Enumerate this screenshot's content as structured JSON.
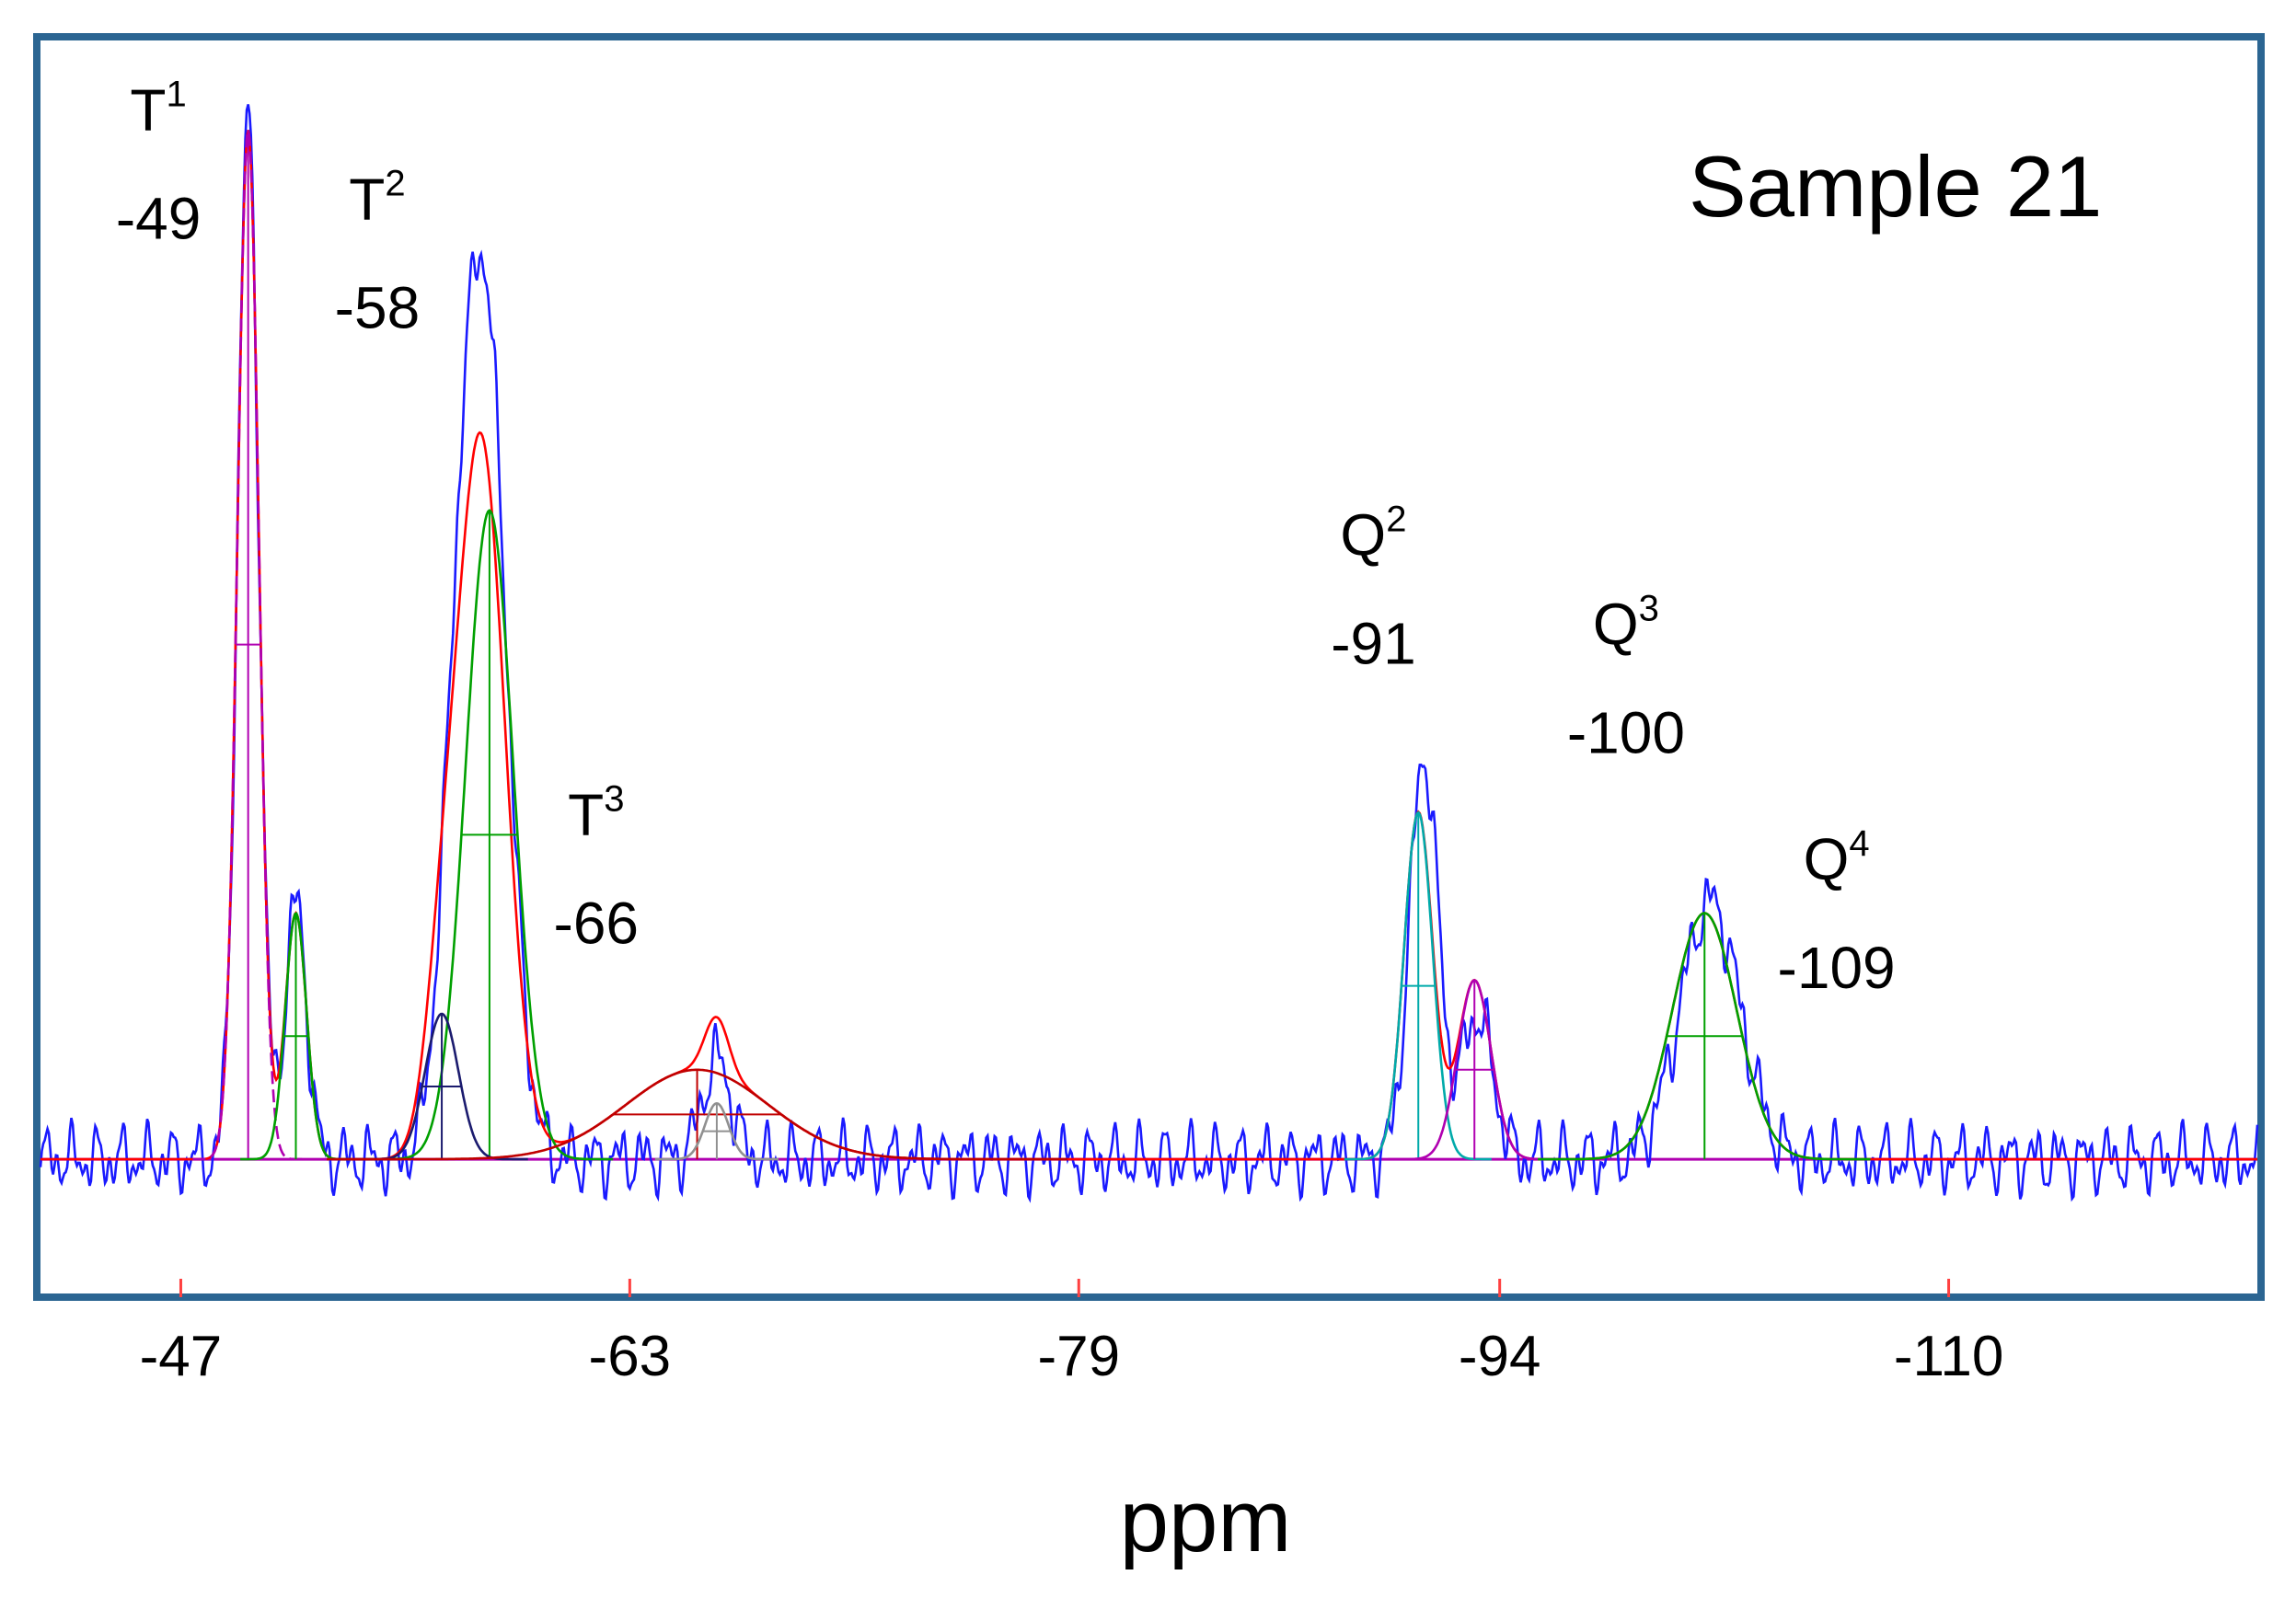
{
  "chart_data": {
    "type": "line",
    "title": "",
    "sample_label": "Sample 21",
    "xlabel": "ppm",
    "ylabel": "",
    "xlim": [
      -42,
      -121
    ],
    "x_reversed_direction": "left-to-right decreasing",
    "xticks": [
      -47,
      -63,
      -79,
      -94,
      -110
    ],
    "xtick_labels": [
      "-47",
      "-63",
      "-79",
      "-94",
      "-110"
    ],
    "ylim": [
      -0.12,
      1.0
    ],
    "grid": false,
    "legend": "none",
    "peak_labels": [
      {
        "name": "T",
        "sup": "1",
        "shift_label": "-49",
        "x": -46.2,
        "y": 0.92
      },
      {
        "name": "T",
        "sup": "2",
        "shift_label": "-58",
        "x": -54.0,
        "y": 0.84
      },
      {
        "name": "T",
        "sup": "3",
        "shift_label": "-66",
        "x": -61.8,
        "y": 0.29
      },
      {
        "name": "Q",
        "sup": "2",
        "shift_label": "-91",
        "x": -89.5,
        "y": 0.54
      },
      {
        "name": "Q",
        "sup": "3",
        "shift_label": "-100",
        "x": -98.5,
        "y": 0.46
      },
      {
        "name": "Q",
        "sup": "4",
        "shift_label": "-109",
        "x": -106.0,
        "y": 0.25
      }
    ],
    "series": [
      {
        "name": "Experimental spectrum",
        "color": "#1a1aff",
        "style": "noisy-line",
        "peaks": [
          {
            "center": -49.4,
            "height": 0.93,
            "fwhm": 0.9
          },
          {
            "center": -51.1,
            "height": 0.23,
            "fwhm": 0.9
          },
          {
            "center": -57.9,
            "height": 0.7,
            "fwhm": 1.8
          },
          {
            "center": -56.9,
            "height": 0.3,
            "fwhm": 1.5
          },
          {
            "center": -66.1,
            "height": 0.09,
            "fwhm": 1.2
          },
          {
            "center": -91.3,
            "height": 0.36,
            "fwhm": 1.2
          },
          {
            "center": -93.2,
            "height": 0.13,
            "fwhm": 1.3
          },
          {
            "center": -101.5,
            "height": 0.23,
            "fwhm": 2.5
          }
        ]
      },
      {
        "name": "Total fit",
        "color": "#ff0000",
        "style": "line",
        "peaks": [
          {
            "center": -49.4,
            "height": 0.92,
            "fwhm": 0.9
          },
          {
            "center": -51.1,
            "height": 0.22,
            "fwhm": 0.9
          },
          {
            "center": -57.7,
            "height": 0.64,
            "fwhm": 2.0
          },
          {
            "center": -56.3,
            "height": 0.13,
            "fwhm": 1.4
          },
          {
            "center": -65.4,
            "height": 0.08,
            "fwhm": 6.0
          },
          {
            "center": -66.1,
            "height": 0.05,
            "fwhm": 1.0
          },
          {
            "center": -91.1,
            "height": 0.31,
            "fwhm": 1.2
          },
          {
            "center": -93.1,
            "height": 0.16,
            "fwhm": 1.4
          },
          {
            "center": -101.3,
            "height": 0.22,
            "fwhm": 2.7
          }
        ]
      },
      {
        "name": "T1 component",
        "color": "#b000b0",
        "center": -49.4,
        "height": 0.92,
        "fwhm": 0.9,
        "dashed": true
      },
      {
        "name": "T1 shoulder component",
        "color": "#00a000",
        "center": -51.1,
        "height": 0.22,
        "fwhm": 0.9
      },
      {
        "name": "T2 main component",
        "color": "#00a000",
        "center": -58.0,
        "height": 0.58,
        "fwhm": 2.0
      },
      {
        "name": "T2 side component",
        "color": "#1b1b6e",
        "center": -56.3,
        "height": 0.13,
        "fwhm": 1.4
      },
      {
        "name": "T3 broad component",
        "color": "#c00000",
        "center": -65.4,
        "height": 0.08,
        "fwhm": 6.0
      },
      {
        "name": "T3 narrow component",
        "color": "#909090",
        "center": -66.1,
        "height": 0.05,
        "fwhm": 1.0
      },
      {
        "name": "Q2 component",
        "color": "#00aaaa",
        "center": -91.1,
        "height": 0.31,
        "fwhm": 1.2
      },
      {
        "name": "Q2 shoulder component",
        "color": "#b000b0",
        "center": -93.1,
        "height": 0.16,
        "fwhm": 1.4
      },
      {
        "name": "Q3 component",
        "color": "#00a000",
        "center": -101.3,
        "height": 0.22,
        "fwhm": 2.7
      }
    ],
    "baseline": {
      "y": 0.0,
      "color": "#b000b0"
    }
  }
}
